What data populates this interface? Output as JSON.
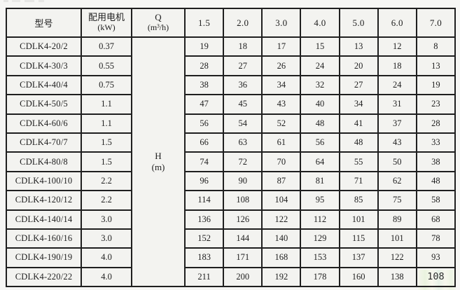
{
  "page": {
    "background": "#f6f6f4",
    "table_fill": "#f3f3f0",
    "border_color": "#1f1f1f",
    "edited_cell_tint": "#ecf4e3"
  },
  "table": {
    "header": {
      "model": "型号",
      "motor_line1": "配用电机",
      "motor_line2": "(kW)",
      "q_line1": "Q",
      "q_line2": "(m³/h)",
      "flow_columns": [
        "1.5",
        "2.0",
        "3.0",
        "4.0",
        "5.0",
        "6.0",
        "7.0"
      ]
    },
    "h_cell": {
      "line1": "H",
      "line2": "(m)"
    },
    "rows": [
      {
        "model": "CDLK4-20/2",
        "power": "0.37",
        "values": [
          "19",
          "18",
          "17",
          "15",
          "13",
          "12",
          "8"
        ]
      },
      {
        "model": "CDLK4-30/3",
        "power": "0.55",
        "values": [
          "28",
          "27",
          "26",
          "24",
          "20",
          "18",
          "13"
        ]
      },
      {
        "model": "CDLK4-40/4",
        "power": "0.75",
        "values": [
          "38",
          "36",
          "34",
          "32",
          "27",
          "24",
          "19"
        ]
      },
      {
        "model": "CDLK4-50/5",
        "power": "1.1",
        "values": [
          "47",
          "45",
          "43",
          "40",
          "34",
          "31",
          "23"
        ]
      },
      {
        "model": "CDLK4-60/6",
        "power": "1.1",
        "values": [
          "56",
          "54",
          "52",
          "48",
          "41",
          "37",
          "28"
        ]
      },
      {
        "model": "CDLK4-70/7",
        "power": "1.5",
        "values": [
          "66",
          "63",
          "61",
          "56",
          "48",
          "43",
          "33"
        ]
      },
      {
        "model": "CDLK4-80/8",
        "power": "1.5",
        "values": [
          "74",
          "72",
          "70",
          "64",
          "55",
          "50",
          "38"
        ]
      },
      {
        "model": "CDLK4-100/10",
        "power": "2.2",
        "values": [
          "96",
          "90",
          "87",
          "81",
          "71",
          "62",
          "48"
        ]
      },
      {
        "model": "CDLK4-120/12",
        "power": "2.2",
        "values": [
          "114",
          "108",
          "104",
          "95",
          "85",
          "75",
          "58"
        ]
      },
      {
        "model": "CDLK4-140/14",
        "power": "3.0",
        "values": [
          "136",
          "126",
          "122",
          "112",
          "101",
          "89",
          "68"
        ]
      },
      {
        "model": "CDLK4-160/16",
        "power": "3.0",
        "values": [
          "152",
          "144",
          "140",
          "129",
          "115",
          "101",
          "78"
        ]
      },
      {
        "model": "CDLK4-190/19",
        "power": "4.0",
        "values": [
          "183",
          "171",
          "168",
          "153",
          "137",
          "122",
          "93"
        ]
      },
      {
        "model": "CDLK4-220/22",
        "power": "4.0",
        "values": [
          "211",
          "200",
          "192",
          "178",
          "160",
          "138",
          "108"
        ]
      }
    ]
  }
}
